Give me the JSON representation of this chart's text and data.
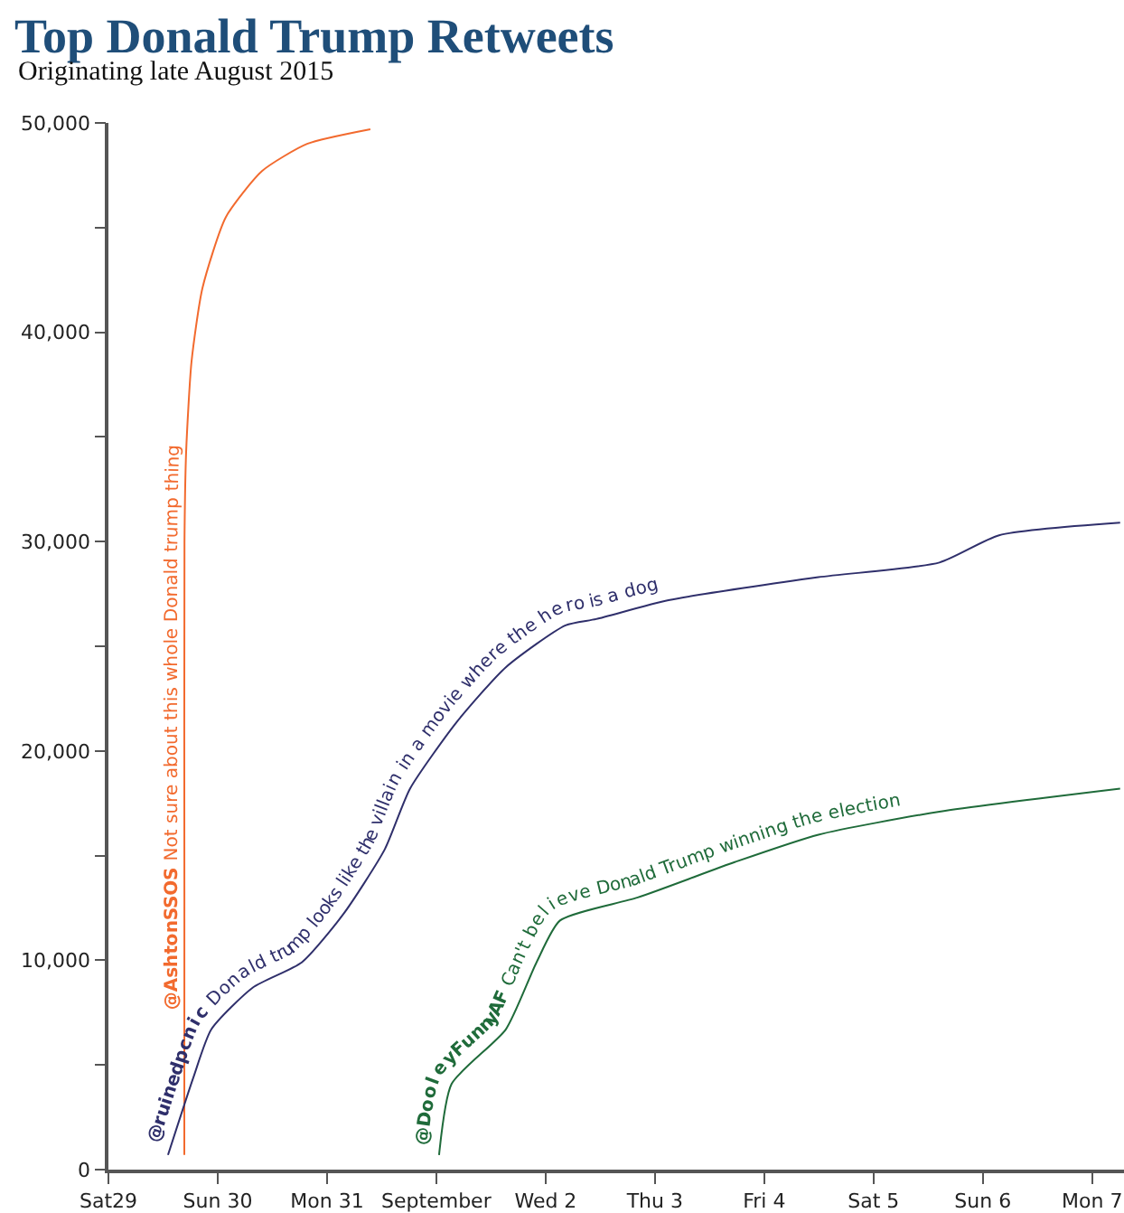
{
  "chart_data": {
    "type": "line",
    "title": "Top Donald Trump Retweets",
    "subtitle": "Originating late August 2015",
    "series": [
      {
        "name": "@AshtonSSOS",
        "color": "#f26a2e",
        "x": [
          "2015-08-29T16:40",
          "2015-08-29T16:41",
          "2015-08-29T16:42",
          "2015-08-29T17:04",
          "2015-08-29T18:15",
          "2015-08-29T20:38",
          "2015-08-30T01:47",
          "2015-08-30T09:43",
          "2015-08-30T19:38",
          "2015-08-31T09:31"
        ],
        "values": [
          700,
          12800,
          30000,
          34300,
          38600,
          42100,
          45500,
          47700,
          49000,
          49700
        ]
      },
      {
        "name": "@ruinedpcnic",
        "color": "#2f2f6b",
        "x": [
          "2015-08-29T13:05",
          "2015-08-29T18:39",
          "2015-08-29T22:36",
          "2015-08-30T07:44",
          "2015-08-30T18:27",
          "2015-08-31T03:34",
          "2015-08-31T12:41",
          "2015-08-31T18:14",
          "2015-09-01T04:33",
          "2015-09-01T15:16",
          "2015-09-02T04:22",
          "2015-09-02T11:06",
          "2015-09-03T02:59",
          "2015-09-04T11:54",
          "2015-09-05T14:28",
          "2015-09-06T03:34",
          "2015-09-07T06:09"
        ],
        "values": [
          700,
          4400,
          6700,
          8700,
          9900,
          12200,
          15300,
          18200,
          21400,
          24000,
          26000,
          26300,
          27200,
          28300,
          29000,
          30300,
          30900
        ]
      },
      {
        "name": "@DooleyFunnyAF",
        "color": "#1f6b3a",
        "x": [
          "2015-09-01T00:36",
          "2015-09-01T03:22",
          "2015-09-01T15:16",
          "2015-09-01T22:00",
          "2015-09-02T03:10",
          "2015-09-02T20:14",
          "2015-09-03T17:40",
          "2015-09-04T11:54",
          "2015-09-05T14:28",
          "2015-09-07T06:09"
        ],
        "values": [
          700,
          4100,
          6700,
          9900,
          11900,
          13000,
          14700,
          16000,
          17100,
          18200
        ]
      }
    ],
    "annotations": [
      "Not sure about this whole Donald trump thing",
      "Donald trump looks like the villain in a movie where the hero is a dog",
      "Can't believe Donald Trump winning the election"
    ],
    "xlim": [
      "2015-08-29",
      "2015-09-07T07:00"
    ],
    "xticks": [
      {
        "value": "2015-08-29",
        "label": "Sat29"
      },
      {
        "value": "2015-08-30",
        "label": "Sun 30"
      },
      {
        "value": "2015-08-31",
        "label": "Mon 31"
      },
      {
        "value": "2015-09-01",
        "label": "September"
      },
      {
        "value": "2015-09-02",
        "label": "Wed 2"
      },
      {
        "value": "2015-09-03",
        "label": "Thu 3"
      },
      {
        "value": "2015-09-04",
        "label": "Fri 4"
      },
      {
        "value": "2015-09-05",
        "label": "Sat 5"
      },
      {
        "value": "2015-09-06",
        "label": "Sun 6"
      },
      {
        "value": "2015-09-07",
        "label": "Mon 7"
      }
    ],
    "ylim": [
      0,
      50000
    ],
    "yticks": [
      0,
      {
        "value": 5000,
        "label": null
      },
      {
        "value": 10000,
        "label": "10,000"
      },
      {
        "value": 15000,
        "label": null
      },
      {
        "value": 20000,
        "label": "20,000"
      },
      {
        "value": 25000,
        "label": null
      },
      {
        "value": 30000,
        "label": "30,000"
      },
      {
        "value": 35000,
        "label": null
      },
      {
        "value": 40000,
        "label": "40,000"
      },
      {
        "value": 45000,
        "label": null
      },
      {
        "value": 50000,
        "label": "50,000"
      }
    ],
    "grid": false,
    "legend": false,
    "marker": "none",
    "line_style": "solid"
  }
}
